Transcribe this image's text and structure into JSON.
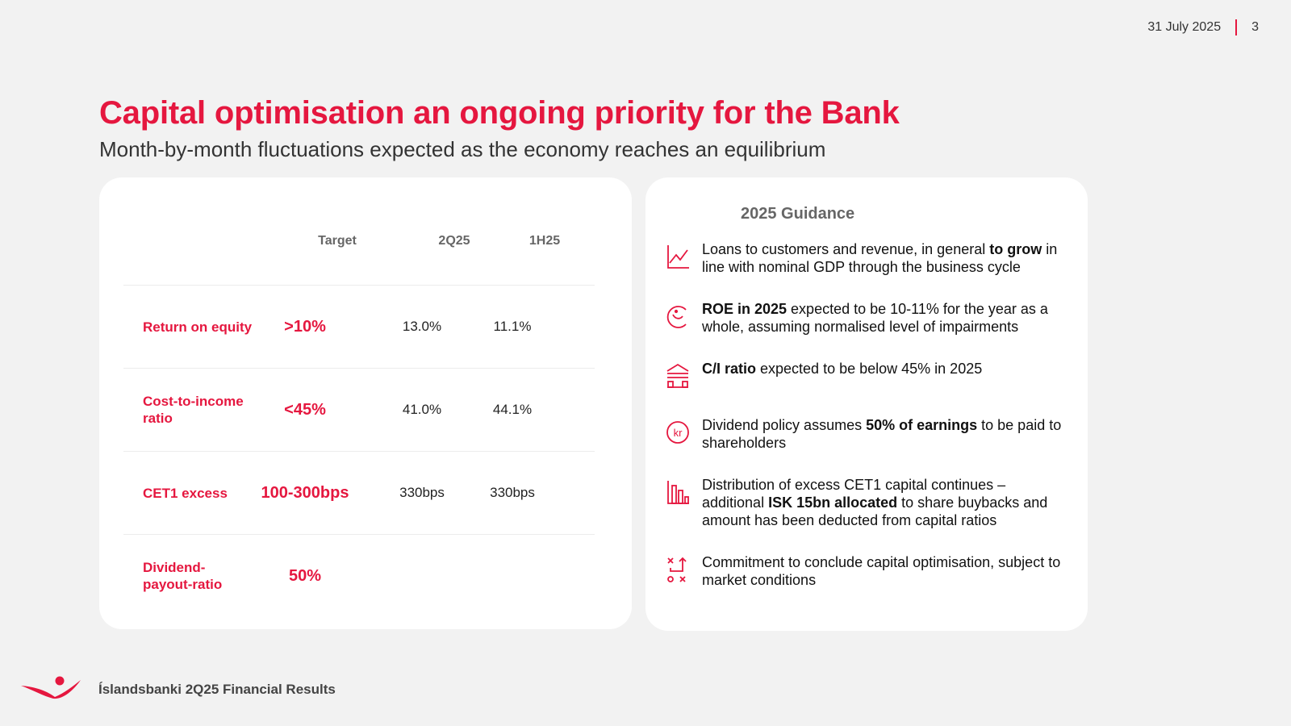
{
  "header": {
    "date": "31 July 2025",
    "page_number": "3"
  },
  "title": "Capital optimisation an ongoing priority for the Bank",
  "subtitle": "Month-by-month fluctuations expected as the economy reaches an equilibrium",
  "kpi_table": {
    "columns": [
      "",
      "Target",
      "2Q25",
      "1H25"
    ],
    "rows": [
      {
        "label": "Return on equity",
        "target": ">10%",
        "q2": "13.0%",
        "h1": "11.1%"
      },
      {
        "label": "Cost-to-income ratio",
        "target": "<45%",
        "q2": "41.0%",
        "h1": "44.1%"
      },
      {
        "label": "CET1 excess",
        "target": "100-300bps",
        "q2": "330bps",
        "h1": "330bps"
      },
      {
        "label": "Dividend-payout-ratio",
        "target": "50%",
        "q2": "",
        "h1": ""
      }
    ]
  },
  "guidance": {
    "title": "2025 Guidance",
    "items": [
      {
        "icon": "line-chart-icon",
        "pre": "Loans to customers and revenue, in general ",
        "bold": "to grow",
        "post": " in line with nominal GDP through the business cycle"
      },
      {
        "icon": "piggy-bank-icon",
        "pre": "",
        "bold": "ROE in 2025",
        "post": " expected to be 10-11% for the year as a whole, assuming normalised level of impairments"
      },
      {
        "icon": "bank-building-icon",
        "pre": "",
        "bold": "C/I ratio",
        "post": " expected to be below 45% in 2025"
      },
      {
        "icon": "krona-coin-icon",
        "pre": "Dividend policy assumes ",
        "bold": "50% of earnings",
        "post": " to be paid to shareholders"
      },
      {
        "icon": "bar-chart-icon",
        "pre": "Distribution of excess CET1 capital continues – additional ",
        "bold": "ISK 15bn allocated",
        "post": " to share buybacks and amount has been deducted from capital ratios"
      },
      {
        "icon": "strategy-icon",
        "pre": "Commitment to conclude capital optimisation, subject to market conditions",
        "bold": "",
        "post": ""
      }
    ]
  },
  "footer": {
    "text": "Íslandsbanki 2Q25 Financial Results",
    "logo": "islandsbanki-logo"
  },
  "colors": {
    "accent": "#e5173f",
    "background": "#f2f2f2",
    "card": "#ffffff"
  }
}
